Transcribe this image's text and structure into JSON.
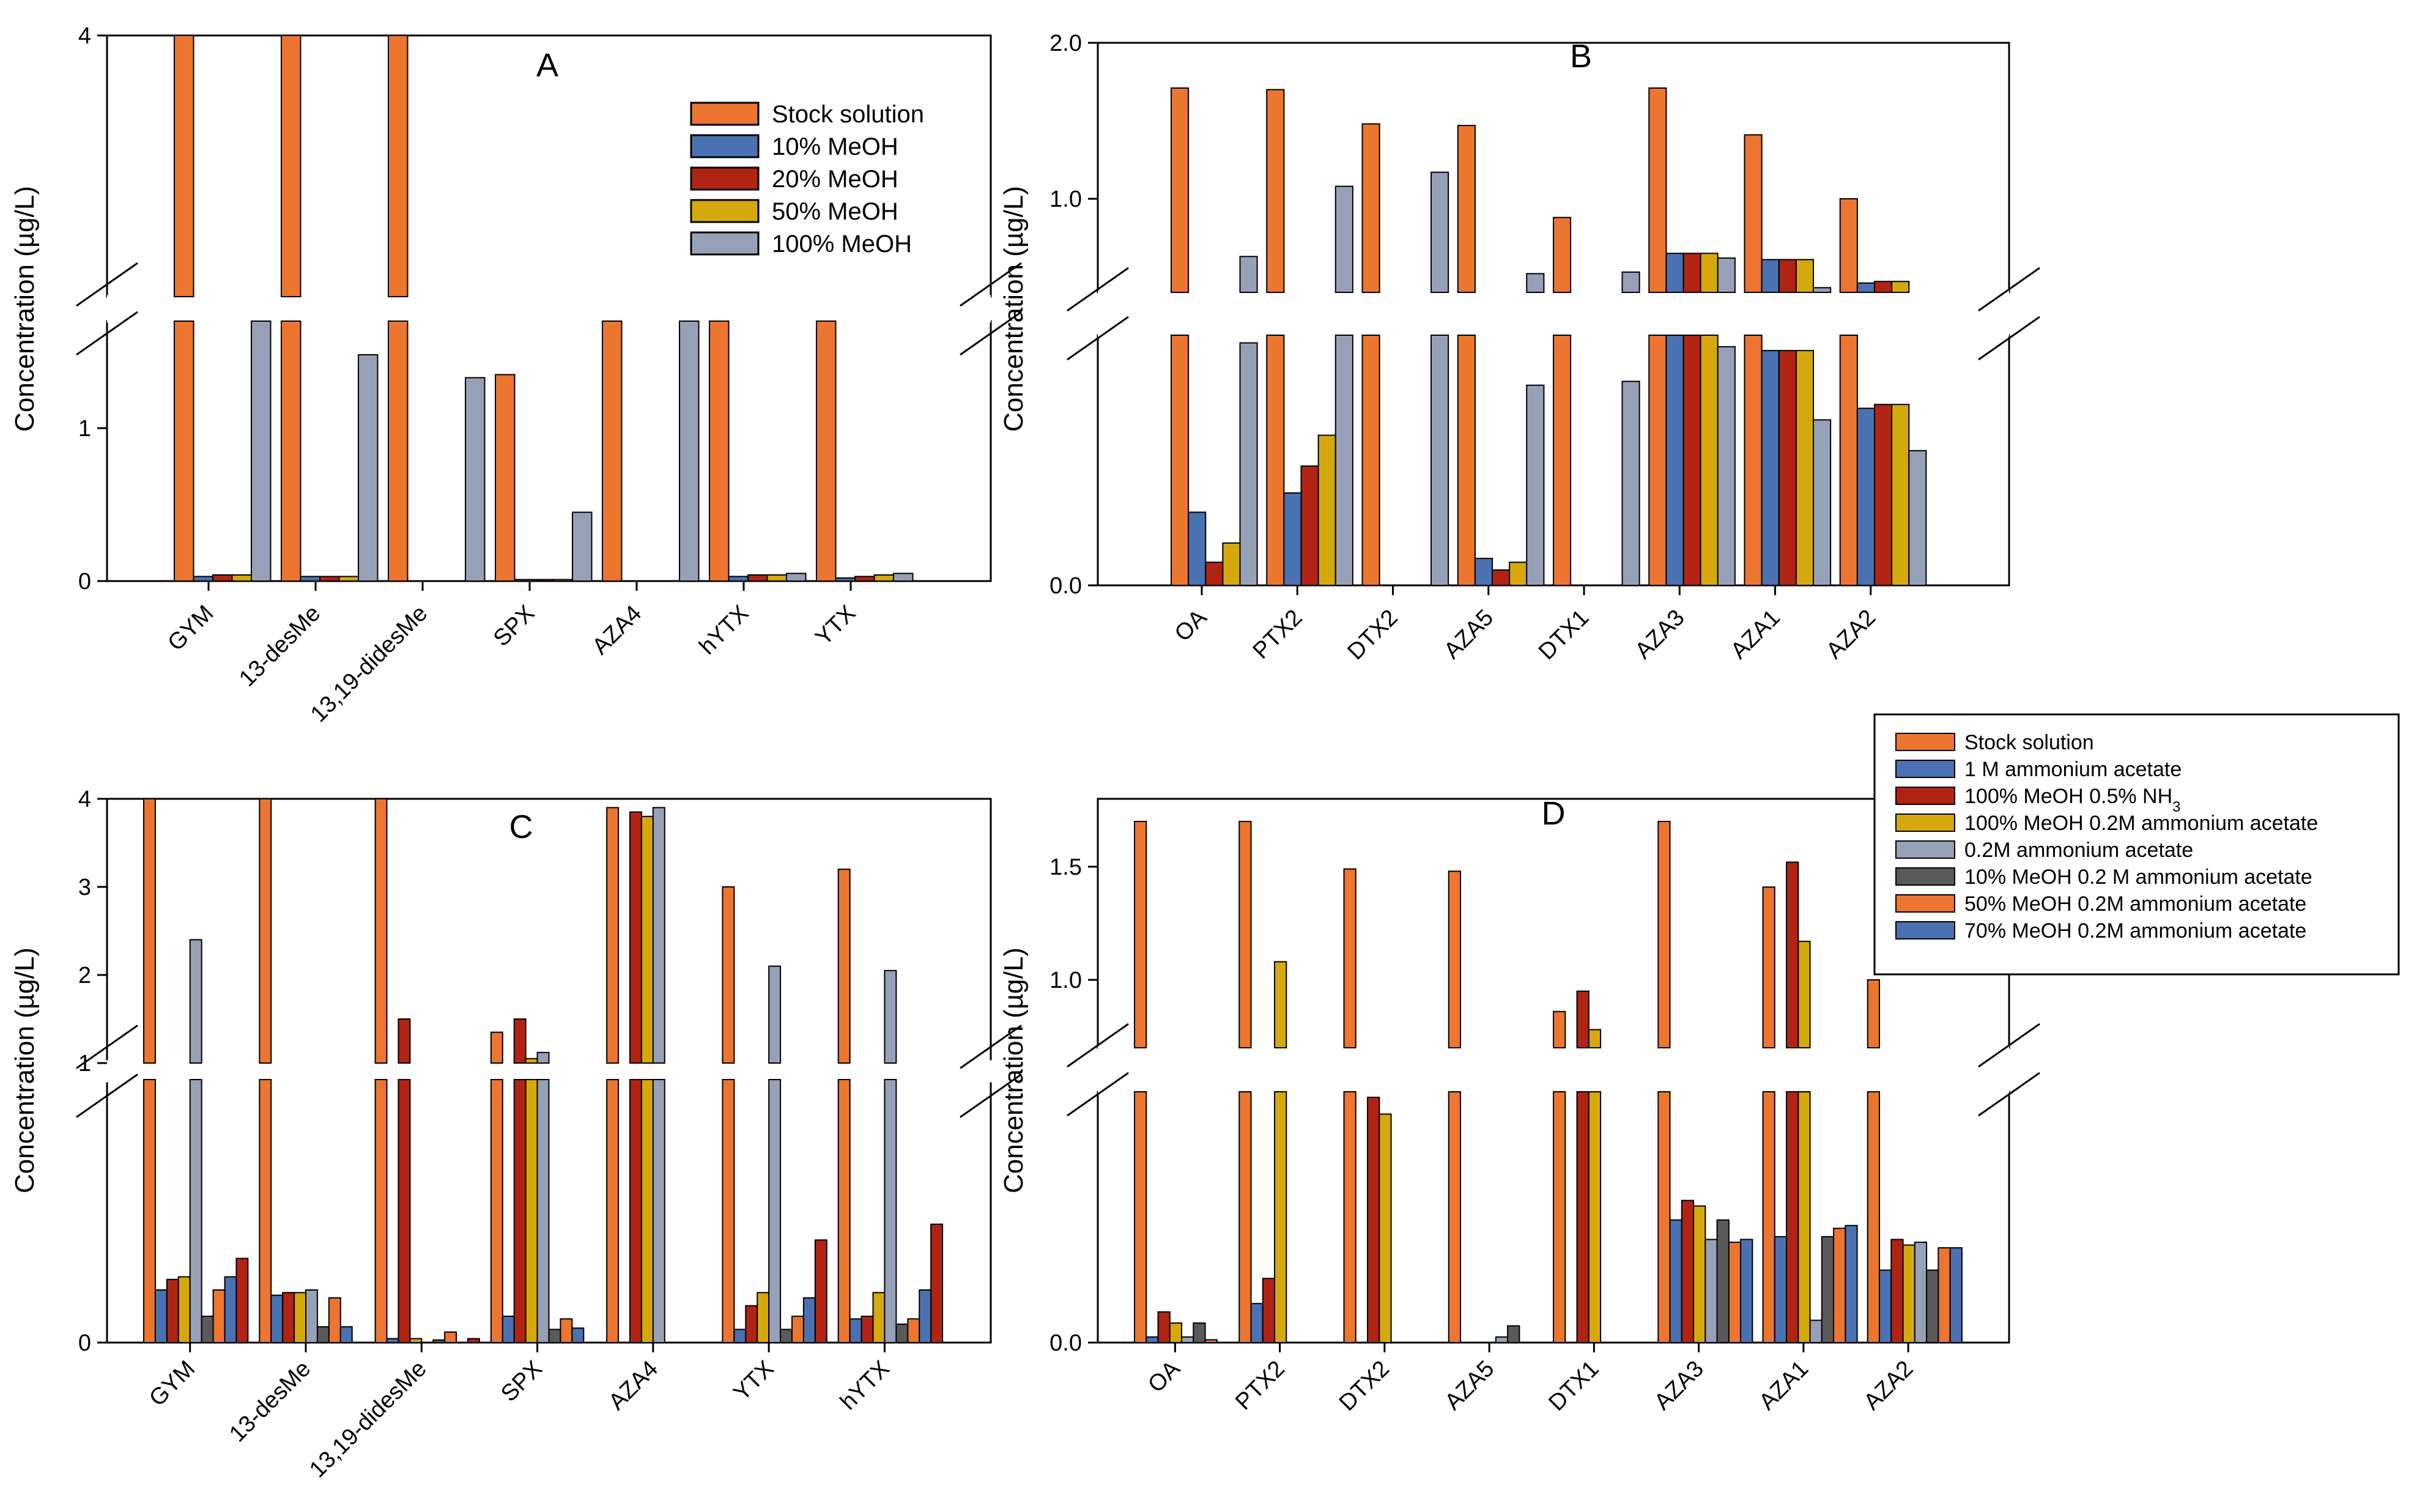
{
  "chart_data": [
    {
      "id": "A",
      "type": "bar",
      "panel_label": "A",
      "ylabel": "Concentration (µg/L)",
      "categories": [
        "GYM",
        "13-desMe",
        "13,19-didesMe",
        "SPX",
        "AZA4",
        "hYTX",
        "YTX"
      ],
      "axis_break": true,
      "lower_range": [
        0,
        1.7
      ],
      "lower_ticks": [
        "0",
        "1"
      ],
      "upper_range": [
        3.25,
        4
      ],
      "upper_ticks": [
        "4"
      ],
      "legend_position": "top-right",
      "series": [
        {
          "name": "Stock solution",
          "color": "#ec7530",
          "values": [
            4.3,
            4.3,
            4.3,
            1.35,
            1.72,
            1.72,
            1.72
          ]
        },
        {
          "name": "10% MeOH",
          "color": "#4a72b2",
          "values": [
            0.03,
            0.03,
            0.0,
            0.01,
            0.0,
            0.03,
            0.02
          ]
        },
        {
          "name": "20% MeOH",
          "color": "#b12414",
          "values": [
            0.04,
            0.03,
            0.0,
            0.01,
            0.0,
            0.04,
            0.03
          ]
        },
        {
          "name": "50% MeOH",
          "color": "#d5a90e",
          "values": [
            0.04,
            0.03,
            0.0,
            0.01,
            0.0,
            0.04,
            0.04
          ]
        },
        {
          "name": "100% MeOH",
          "color": "#96a1b8",
          "values": [
            1.72,
            1.48,
            1.33,
            0.45,
            1.72,
            0.05,
            0.05
          ]
        }
      ]
    },
    {
      "id": "B",
      "type": "bar",
      "panel_label": "B",
      "ylabel": "Concentration (µg/L)",
      "categories": [
        "OA",
        "PTX2",
        "DTX2",
        "AZA5",
        "DTX1",
        "AZA3",
        "AZA1",
        "AZA2"
      ],
      "axis_break": true,
      "lower_range": [
        0,
        0.65
      ],
      "lower_ticks": [
        "0.0"
      ],
      "upper_range": [
        0.4,
        2.0
      ],
      "upper_ticks": [
        "1.0",
        "2.0"
      ],
      "series": [
        {
          "name": "Stock solution",
          "color": "#ec7530",
          "values": [
            1.71,
            1.7,
            1.48,
            1.47,
            0.88,
            1.71,
            1.41,
            1.0
          ]
        },
        {
          "name": "10% MeOH",
          "color": "#4a72b2",
          "values": [
            0.19,
            0.24,
            0.0,
            0.07,
            0.0,
            0.65,
            0.61,
            0.46
          ]
        },
        {
          "name": "20% MeOH",
          "color": "#b12414",
          "values": [
            0.06,
            0.31,
            0.0,
            0.04,
            0.0,
            0.65,
            0.61,
            0.47
          ]
        },
        {
          "name": "50% MeOH",
          "color": "#d5a90e",
          "values": [
            0.11,
            0.39,
            0.0,
            0.06,
            0.0,
            0.65,
            0.61,
            0.47
          ]
        },
        {
          "name": "100% MeOH",
          "color": "#96a1b8",
          "values": [
            0.63,
            1.08,
            1.17,
            0.52,
            0.53,
            0.62,
            0.43,
            0.35
          ]
        }
      ]
    },
    {
      "id": "C",
      "type": "bar",
      "panel_label": "C",
      "ylabel": "Concentration (µg/L)",
      "categories": [
        "GYM",
        "13-desMe",
        "13,19-didesMe",
        "SPX",
        "AZA4",
        "YTX",
        "hYTX"
      ],
      "axis_break": true,
      "lower_range": [
        0,
        1.0
      ],
      "lower_ticks": [
        "0"
      ],
      "upper_range": [
        1,
        4
      ],
      "upper_ticks": [
        "1",
        "2",
        "3",
        "4"
      ],
      "series": [
        {
          "name": "Stock solution",
          "color": "#ec7530",
          "values": [
            4.0,
            4.0,
            4.0,
            1.35,
            3.9,
            3.0,
            3.2
          ]
        },
        {
          "name": "1 M ammonium acetate",
          "color": "#4a72b2",
          "values": [
            0.2,
            0.18,
            0.015,
            0.1,
            0.0,
            0.05,
            0.09
          ]
        },
        {
          "name": "100% MeOH 0.5% NH3",
          "color": "#b12414",
          "values": [
            0.24,
            0.19,
            1.5,
            1.5,
            3.85,
            0.14,
            0.1
          ]
        },
        {
          "name": "100% MeOH 0.2M ammonium acetate",
          "color": "#d5a90e",
          "values": [
            0.25,
            0.19,
            0.015,
            1.05,
            3.8,
            0.19,
            0.19
          ]
        },
        {
          "name": "0.2M ammonium acetate",
          "color": "#96a1b8",
          "values": [
            2.4,
            0.2,
            0.0,
            1.12,
            3.9,
            2.1,
            2.05
          ]
        },
        {
          "name": "10% MeOH 0.2 M ammonium acetate",
          "color": "#5a5a5a",
          "values": [
            0.1,
            0.06,
            0.01,
            0.05,
            0.0,
            0.05,
            0.07
          ]
        },
        {
          "name": "50% MeOH 0.2M ammonium acetate",
          "color": "#ec7530",
          "values": [
            0.2,
            0.17,
            0.04,
            0.09,
            0.0,
            0.1,
            0.09
          ]
        },
        {
          "name": "70% MeOH 0.2M ammonium acetate",
          "color": "#4a72b2",
          "values": [
            0.25,
            0.06,
            0.0,
            0.055,
            0.0,
            0.17,
            0.2
          ]
        },
        {
          "name": "100% MeOH 0.5% NH3",
          "color": "#b12414",
          "values": [
            0.32,
            0.0,
            0.015,
            0.0,
            0.0,
            0.39,
            0.45
          ]
        }
      ]
    },
    {
      "id": "D",
      "type": "bar",
      "panel_label": "D",
      "ylabel": "Concentration (µg/L)",
      "categories": [
        "OA",
        "PTX2",
        "DTX2",
        "AZA5",
        "DTX1",
        "AZA3",
        "AZA1",
        "AZA2"
      ],
      "axis_break": true,
      "lower_range": [
        0,
        0.45
      ],
      "lower_ticks": [
        "0.0"
      ],
      "upper_range": [
        0.7,
        1.8
      ],
      "upper_ticks": [
        "1.0",
        "1.5"
      ],
      "legend_position": "top-right",
      "series": [
        {
          "name": "Stock solution",
          "color": "#ec7530",
          "values": [
            1.7,
            1.7,
            1.49,
            1.48,
            0.86,
            1.7,
            1.41,
            1.0
          ]
        },
        {
          "name": "1 M ammonium acetate",
          "color": "#4a72b2",
          "values": [
            0.01,
            0.07,
            0.0,
            0.0,
            0.0,
            0.22,
            0.19,
            0.13
          ]
        },
        {
          "name": "100% MeOH 0.5% NH3",
          "color": "#b12414",
          "values": [
            0.055,
            0.115,
            0.44,
            0.0,
            0.95,
            0.255,
            1.52,
            0.185
          ]
        },
        {
          "name": "100% MeOH 0.2M ammonium acetate",
          "color": "#d5a90e",
          "values": [
            0.035,
            1.08,
            0.41,
            0.0,
            0.78,
            0.245,
            1.17,
            0.175
          ]
        },
        {
          "name": "0.2M ammonium acetate",
          "color": "#96a1b8",
          "values": [
            0.01,
            0.0,
            0.0,
            0.01,
            0.0,
            0.185,
            0.04,
            0.18
          ]
        },
        {
          "name": "10% MeOH 0.2 M ammonium acetate",
          "color": "#5a5a5a",
          "values": [
            0.035,
            0.0,
            0.0,
            0.03,
            0.0,
            0.22,
            0.19,
            0.13
          ]
        },
        {
          "name": "50% MeOH 0.2M ammonium acetate",
          "color": "#ec7530",
          "values": [
            0.005,
            0.0,
            0.0,
            0.0,
            0.0,
            0.18,
            0.205,
            0.17
          ]
        },
        {
          "name": "70% MeOH 0.2M ammonium acetate",
          "color": "#4a72b2",
          "values": [
            0.0,
            0.0,
            0.0,
            0.0,
            0.0,
            0.185,
            0.21,
            0.17
          ]
        }
      ],
      "legend_entries": [
        {
          "label": "Stock solution",
          "sub": "",
          "color": "#ec7530"
        },
        {
          "label": "1 M ammonium acetate",
          "sub": "",
          "color": "#4a72b2"
        },
        {
          "label": "100% MeOH 0.5% NH",
          "sub": "3",
          "color": "#b12414"
        },
        {
          "label": "100% MeOH 0.2M ammonium acetate",
          "sub": "",
          "color": "#d5a90e"
        },
        {
          "label": "0.2M ammonium acetate",
          "sub": "",
          "color": "#96a1b8"
        },
        {
          "label": "10% MeOH 0.2 M ammonium acetate",
          "sub": "",
          "color": "#5a5a5a"
        },
        {
          "label": "50% MeOH 0.2M ammonium acetate",
          "sub": "",
          "color": "#ec7530"
        },
        {
          "label": "70% MeOH 0.2M ammonium acetate",
          "sub": "",
          "color": "#4a72b2"
        }
      ]
    }
  ]
}
